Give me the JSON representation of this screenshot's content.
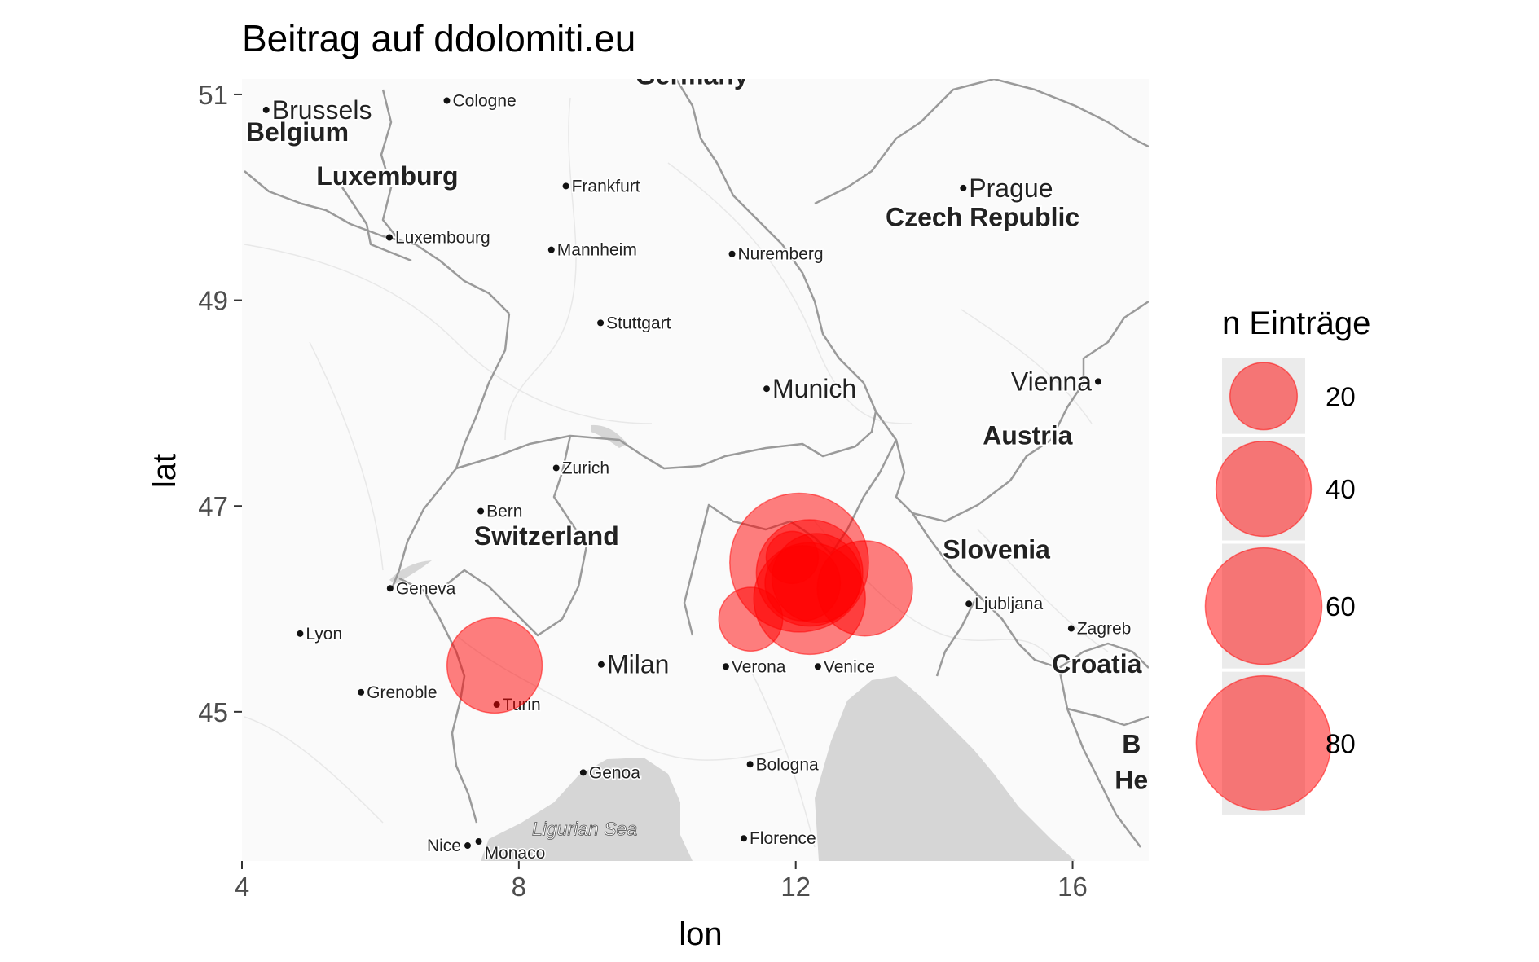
{
  "title": "Beitrag auf ddolomiti.eu",
  "chart_data": {
    "type": "scatter",
    "subtype": "bubble-map",
    "title": "Beitrag auf ddolomiti.eu",
    "xlabel": "lon",
    "ylabel": "lat",
    "xlim": [
      4.0,
      17.1
    ],
    "ylim": [
      43.55,
      51.15
    ],
    "x_ticks": [
      4,
      8,
      12,
      16
    ],
    "y_ticks": [
      45,
      47,
      49,
      51
    ],
    "legend": {
      "title": "n Einträge",
      "position": "right",
      "entries": [
        {
          "label": "20",
          "value": 20
        },
        {
          "label": "40",
          "value": 40
        },
        {
          "label": "60",
          "value": 60
        },
        {
          "label": "80",
          "value": 80
        }
      ]
    },
    "point_color": "#ff0000",
    "point_alpha": 0.5,
    "points": [
      {
        "lon": 7.65,
        "lat": 45.45,
        "n": 40
      },
      {
        "lon": 11.35,
        "lat": 45.9,
        "n": 18
      },
      {
        "lon": 12.05,
        "lat": 46.45,
        "n": 85
      },
      {
        "lon": 11.95,
        "lat": 46.5,
        "n": 12
      },
      {
        "lon": 12.2,
        "lat": 46.35,
        "n": 50
      },
      {
        "lon": 12.3,
        "lat": 46.3,
        "n": 35
      },
      {
        "lon": 12.1,
        "lat": 46.25,
        "n": 25
      },
      {
        "lon": 12.2,
        "lat": 46.1,
        "n": 55
      },
      {
        "lon": 13.0,
        "lat": 46.2,
        "n": 40
      }
    ],
    "basemap": {
      "cities": [
        {
          "name": "Brussels",
          "lon": 4.35,
          "lat": 50.85
        },
        {
          "name": "Cologne",
          "lon": 6.96,
          "lat": 50.94
        },
        {
          "name": "Frankfurt",
          "lon": 8.68,
          "lat": 50.11
        },
        {
          "name": "Luxembourg",
          "lon": 6.13,
          "lat": 49.61
        },
        {
          "name": "Mannheim",
          "lon": 8.47,
          "lat": 49.49
        },
        {
          "name": "Nuremberg",
          "lon": 11.08,
          "lat": 49.45
        },
        {
          "name": "Stuttgart",
          "lon": 9.18,
          "lat": 48.78
        },
        {
          "name": "Prague",
          "lon": 14.42,
          "lat": 50.09
        },
        {
          "name": "Munich",
          "lon": 11.58,
          "lat": 48.14
        },
        {
          "name": "Vienna",
          "lon": 16.37,
          "lat": 48.21
        },
        {
          "name": "Zurich",
          "lon": 8.54,
          "lat": 47.37
        },
        {
          "name": "Bern",
          "lon": 7.45,
          "lat": 46.95
        },
        {
          "name": "Geneva",
          "lon": 6.14,
          "lat": 46.2
        },
        {
          "name": "Lyon",
          "lon": 4.84,
          "lat": 45.76
        },
        {
          "name": "Grenoble",
          "lon": 5.72,
          "lat": 45.19
        },
        {
          "name": "Turin",
          "lon": 7.68,
          "lat": 45.07
        },
        {
          "name": "Milan",
          "lon": 9.19,
          "lat": 45.46
        },
        {
          "name": "Verona",
          "lon": 10.99,
          "lat": 45.44
        },
        {
          "name": "Venice",
          "lon": 12.32,
          "lat": 45.44
        },
        {
          "name": "Ljubljana",
          "lon": 14.5,
          "lat": 46.05
        },
        {
          "name": "Zagreb",
          "lon": 15.98,
          "lat": 45.81
        },
        {
          "name": "Genoa",
          "lon": 8.93,
          "lat": 44.41
        },
        {
          "name": "Bologna",
          "lon": 11.34,
          "lat": 44.49
        },
        {
          "name": "Florence",
          "lon": 11.25,
          "lat": 43.77
        },
        {
          "name": "Nice",
          "lon": 7.26,
          "lat": 43.7
        },
        {
          "name": "Monaco",
          "lon": 7.42,
          "lat": 43.74
        }
      ],
      "countries": [
        {
          "name": "Germany",
          "lon": 10.5,
          "lat": 51.1
        },
        {
          "name": "Belgium",
          "lon": 4.8,
          "lat": 50.55
        },
        {
          "name": "Luxemburg",
          "lon": 6.1,
          "lat": 50.12
        },
        {
          "name": "Czech Republic",
          "lon": 14.7,
          "lat": 49.72
        },
        {
          "name": "Austria",
          "lon": 15.35,
          "lat": 47.6
        },
        {
          "name": "Switzerland",
          "lon": 8.4,
          "lat": 46.62
        },
        {
          "name": "Slovenia",
          "lon": 14.9,
          "lat": 46.49
        },
        {
          "name": "Croatia",
          "lon": 16.35,
          "lat": 45.38
        }
      ],
      "partial_labels": [
        {
          "text": "B",
          "lon": 16.85,
          "lat": 44.6
        },
        {
          "text": "He",
          "lon": 16.85,
          "lat": 44.25
        }
      ],
      "sea": {
        "name": "Ligurian Sea",
        "lon": 8.95,
        "lat": 43.8
      }
    }
  }
}
